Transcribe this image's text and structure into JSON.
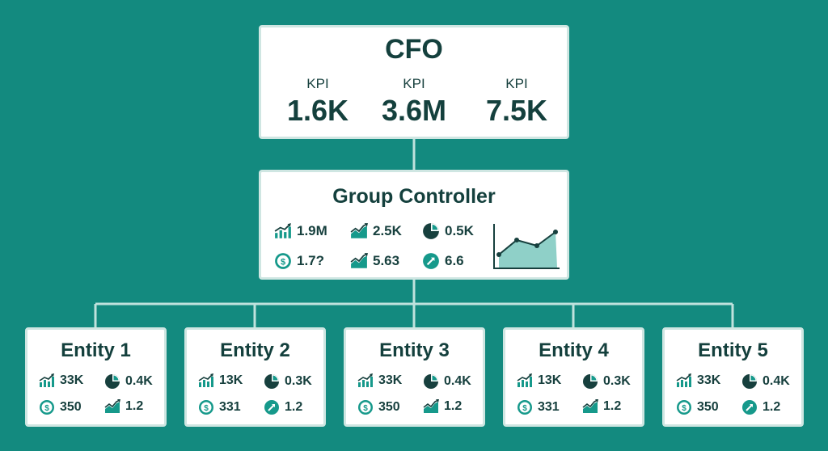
{
  "colors": {
    "background": "#138a7f",
    "accent": "#16998b",
    "box": "#ffffff",
    "text": "#14403d"
  },
  "cfo": {
    "title": "CFO",
    "kpis": [
      {
        "label": "KPI",
        "value": "1.6K"
      },
      {
        "label": "KPI",
        "value": "3.6M"
      },
      {
        "label": "KPI",
        "value": "7.5K"
      }
    ]
  },
  "group_controller": {
    "title": "Group Controller",
    "metrics": [
      {
        "icon": "bar-chart-icon",
        "value": "1.9M"
      },
      {
        "icon": "area-chart-icon",
        "value": "2.5K"
      },
      {
        "icon": "pie-chart-icon",
        "value": "0.5K"
      },
      {
        "icon": "dollar-icon",
        "value": "1.7?"
      },
      {
        "icon": "area-chart-icon",
        "value": "5.63"
      },
      {
        "icon": "trend-up-icon",
        "value": "6.6"
      }
    ],
    "sparkline_icon": "line-area-chart-icon"
  },
  "entities": [
    {
      "title": "Entity 1",
      "m1": "33K",
      "m2": "0.4K",
      "m3": "350",
      "m4": "1.2",
      "m4_icon": "area-chart-icon"
    },
    {
      "title": "Entity 2",
      "m1": "13K",
      "m2": "0.3K",
      "m3": "331",
      "m4": "1.2",
      "m4_icon": "trend-up-icon"
    },
    {
      "title": "Entity 3",
      "m1": "33K",
      "m2": "0.4K",
      "m3": "350",
      "m4": "1.2",
      "m4_icon": "area-chart-icon"
    },
    {
      "title": "Entity 4",
      "m1": "13K",
      "m2": "0.3K",
      "m3": "331",
      "m4": "1.2",
      "m4_icon": "area-chart-icon"
    },
    {
      "title": "Entity 5",
      "m1": "33K",
      "m2": "0.4K",
      "m3": "350",
      "m4": "1.2",
      "m4_icon": "trend-up-icon"
    }
  ]
}
